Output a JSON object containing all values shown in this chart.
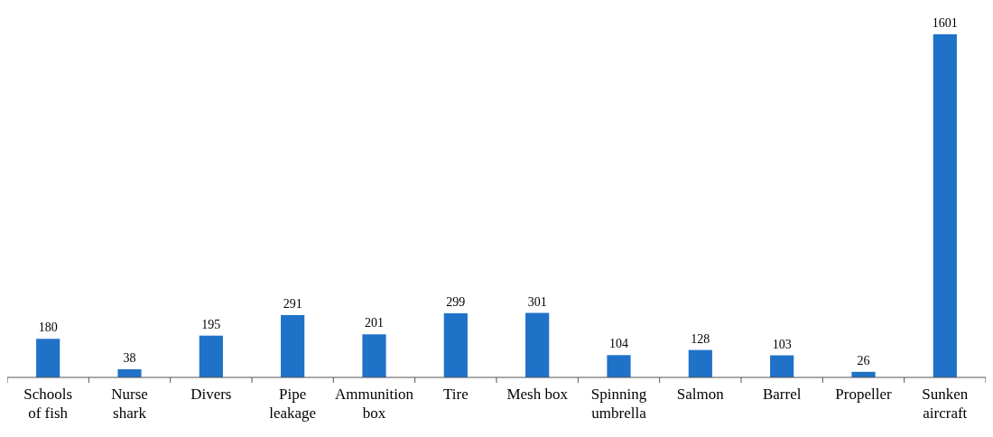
{
  "chart_data": {
    "type": "bar",
    "categories": [
      "Schools\nof fish",
      "Nurse\nshark",
      "Divers",
      "Pipe\nleakage",
      "Ammunition\nbox",
      "Tire",
      "Mesh box",
      "Spinning\numbrella",
      "Salmon",
      "Barrel",
      "Propeller",
      "Sunken\naircraft"
    ],
    "values": [
      180,
      38,
      195,
      291,
      201,
      299,
      301,
      104,
      128,
      103,
      26,
      1601
    ],
    "color": "#1f72c8",
    "data_labels": true
  }
}
